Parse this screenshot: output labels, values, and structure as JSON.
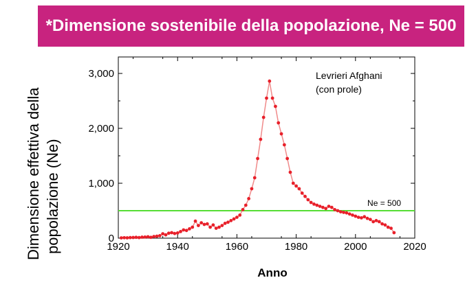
{
  "banner": {
    "text": "*Dimensione sostenibile della popolazione, Ne = 500",
    "bg_color": "#c8237f",
    "text_color": "#ffffff"
  },
  "chart_data": {
    "type": "line",
    "xlabel": "Anno",
    "ylabel_line1": "Dimensione effettiva della",
    "ylabel_line2": "popolazione (Ne)",
    "annotation_line1": "Levrieri Afghani",
    "annotation_line2": "(con prole)",
    "threshold_label": "Ne = 500",
    "threshold_value": 500,
    "threshold_color": "#55dd33",
    "series_color": "#e8202a",
    "line_color": "#f08a8a",
    "xlim": [
      1920,
      2020
    ],
    "ylim": [
      0,
      3300
    ],
    "x_ticks": [
      1920,
      1940,
      1960,
      1980,
      2000,
      2020
    ],
    "x_tick_labels": [
      "1920",
      "1940",
      "1960",
      "1980",
      "2000",
      "2020"
    ],
    "y_ticks": [
      0,
      1000,
      2000,
      3000
    ],
    "y_tick_labels": [
      "0",
      "1,000",
      "2,000",
      "3,000"
    ],
    "grid": false,
    "series": [
      {
        "x": [
          1921,
          1922,
          1923,
          1924,
          1925,
          1926,
          1927,
          1928,
          1929,
          1930,
          1931,
          1932,
          1933,
          1934,
          1935,
          1936,
          1937,
          1938,
          1939,
          1940,
          1941,
          1942,
          1943,
          1944,
          1945,
          1946,
          1947,
          1948,
          1949,
          1950,
          1951,
          1952,
          1953,
          1954,
          1955,
          1956,
          1957,
          1958,
          1959,
          1960,
          1961,
          1962,
          1963,
          1964,
          1965,
          1966,
          1967,
          1968,
          1969,
          1970,
          1971,
          1972,
          1973,
          1974,
          1975,
          1976,
          1977,
          1978,
          1979,
          1980,
          1981,
          1982,
          1983,
          1984,
          1985,
          1986,
          1987,
          1988,
          1989,
          1990,
          1991,
          1992,
          1993,
          1994,
          1995,
          1996,
          1997,
          1998,
          1999,
          2000,
          2001,
          2002,
          2003,
          2004,
          2005,
          2006,
          2007,
          2008,
          2009,
          2010,
          2011,
          2012,
          2013
        ],
        "y": [
          5,
          8,
          6,
          10,
          12,
          15,
          10,
          18,
          20,
          25,
          15,
          30,
          35,
          45,
          80,
          60,
          90,
          100,
          85,
          95,
          120,
          150,
          140,
          170,
          200,
          310,
          230,
          280,
          250,
          260,
          200,
          240,
          180,
          200,
          230,
          270,
          290,
          320,
          350,
          380,
          420,
          520,
          600,
          720,
          900,
          1100,
          1450,
          1800,
          2200,
          2550,
          2860,
          2550,
          2400,
          2100,
          1900,
          1700,
          1450,
          1200,
          1000,
          950,
          900,
          820,
          760,
          700,
          650,
          620,
          600,
          580,
          560,
          540,
          580,
          560,
          520,
          500,
          480,
          470,
          460,
          440,
          420,
          400,
          380,
          370,
          390,
          360,
          340,
          300,
          320,
          300,
          260,
          240,
          200,
          180,
          100
        ]
      }
    ]
  }
}
